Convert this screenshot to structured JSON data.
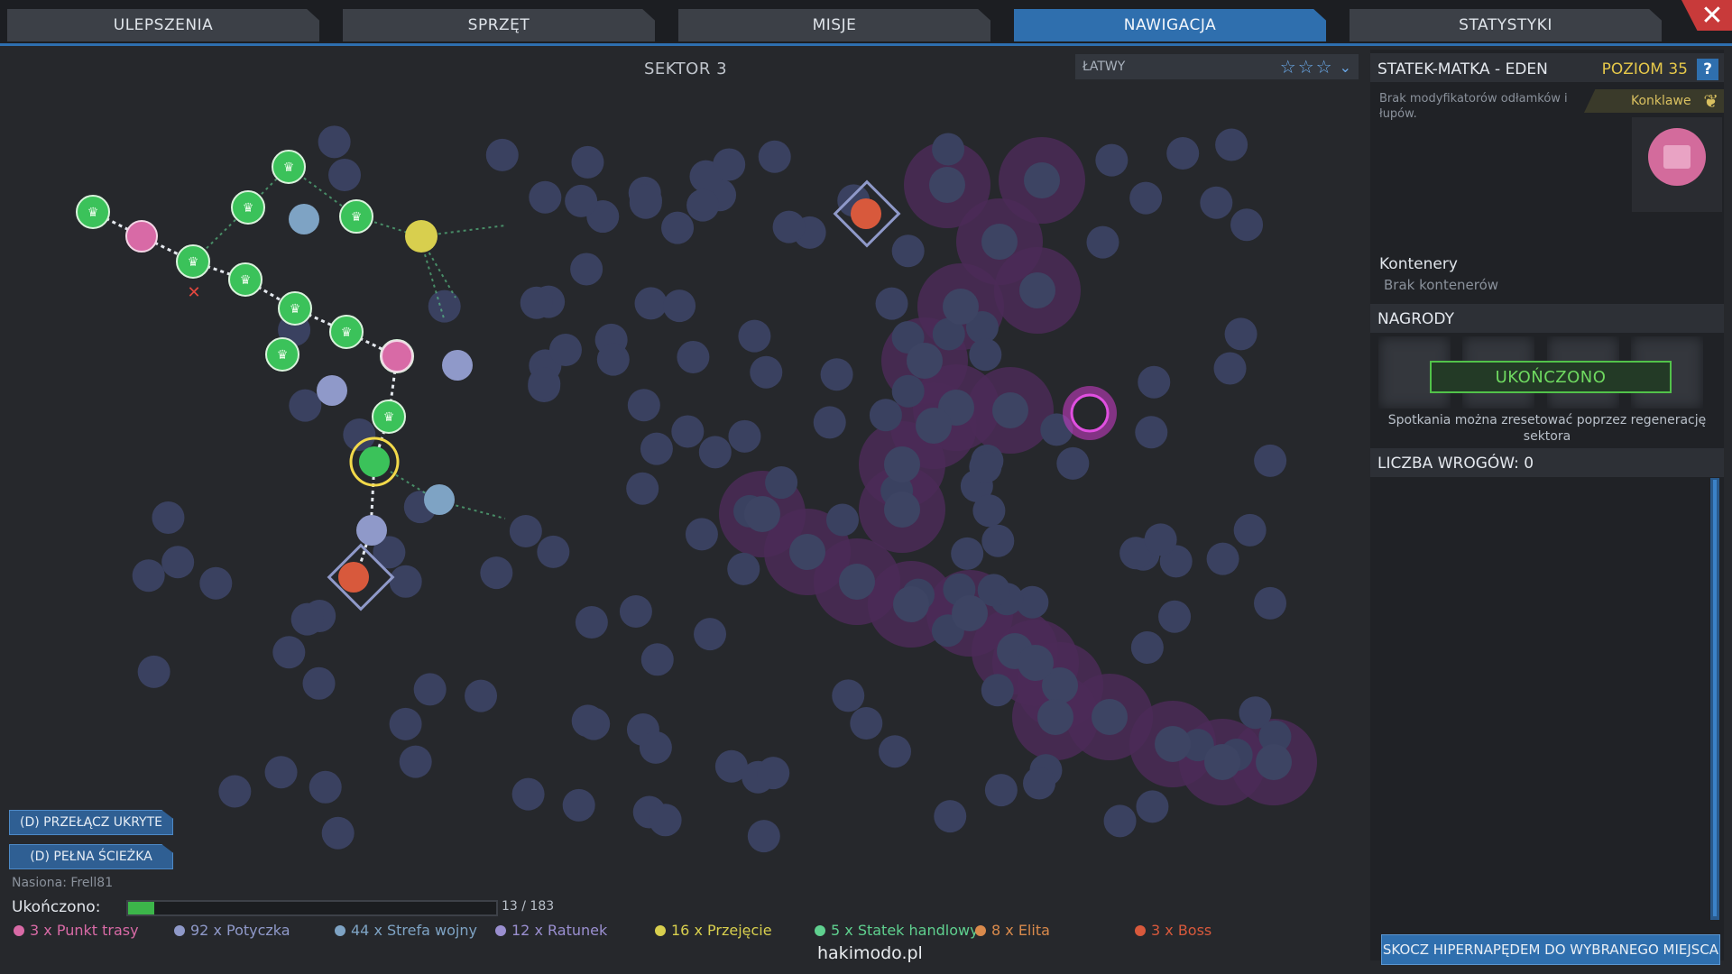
{
  "tabs": [
    {
      "label": "ULEPSZENIA",
      "active": false
    },
    {
      "label": "SPRZĘT",
      "active": false
    },
    {
      "label": "MISJE",
      "active": false
    },
    {
      "label": "NAWIGACJA",
      "active": true
    },
    {
      "label": "STATYSTYKI",
      "active": false
    }
  ],
  "close_icon": "close-icon",
  "map": {
    "sector_title": "SEKTOR 3",
    "difficulty_label": "ŁATWY",
    "difficulty_stars": 0,
    "difficulty_stars_max": 3
  },
  "panel": {
    "title": "STATEK-MATKA - EDEN",
    "level": "POZIOM 35",
    "help": "?",
    "modifier_text": "Brak modyfikatorów odłamków i łupów.",
    "faction": "Konklawe",
    "containers_title": "Kontenery",
    "containers_value": "Brak kontenerów",
    "rewards_title": "NAGRODY",
    "completed_label": "UKOŃCZONO",
    "reset_note": "Spotkania można zresetować poprzez regenerację sektora",
    "enemy_count": "LICZBA WROGÓW: 0",
    "jump_button": "SKOCZ HIPERNAPĘDEM DO WYBRANEGO MIEJSCA"
  },
  "bottom": {
    "toggle_hidden": "(D) PRZEŁĄCZ UKRYTE",
    "full_path": "(D) PEŁNA ŚCIEŻKA",
    "seed": "Nasiona: Frell81",
    "completed_label": "Ukończono:",
    "progress_text": "13 / 183",
    "progress_fraction": 0.071,
    "legend": [
      {
        "label": "3 x Punkt trasy",
        "color": "#d86aa6"
      },
      {
        "label": "92 x Potyczka",
        "color": "#8f99c9"
      },
      {
        "label": "44 x Strefa wojny",
        "color": "#7ea3c4"
      },
      {
        "label": "12 x Ratunek",
        "color": "#9a8fd0"
      },
      {
        "label": "16 x Przejęcie",
        "color": "#d8cf4e"
      },
      {
        "label": "5 x Statek handlowy",
        "color": "#5fd08f"
      },
      {
        "label": "8 x Elita",
        "color": "#d98a4c"
      },
      {
        "label": "3 x Boss",
        "color": "#d8593c"
      }
    ]
  },
  "watermark": "hakimodo.pl"
}
